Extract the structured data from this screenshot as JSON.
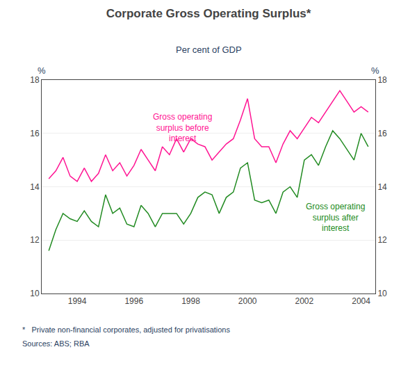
{
  "chart_data": {
    "type": "line",
    "title": "Corporate Gross Operating Surplus*",
    "subtitle": "Per cent of GDP",
    "ylabel": "%",
    "y2label": "%",
    "footnote": "*   Private non-financial corporates, adjusted for privatisations",
    "sources": "Sources: ABS; RBA",
    "grid": true,
    "xlim": [
      1992.75,
      2004.5
    ],
    "xticks": [
      1994,
      1996,
      1998,
      2000,
      2002,
      2004
    ],
    "ylim": [
      10,
      18
    ],
    "yticks": [
      10,
      12,
      14,
      16,
      18
    ],
    "y2lim": [
      10,
      18
    ],
    "y2ticks": [
      10,
      12,
      14,
      16,
      18
    ],
    "x": [
      1993.0,
      1993.25,
      1993.5,
      1993.75,
      1994.0,
      1994.25,
      1994.5,
      1994.75,
      1995.0,
      1995.25,
      1995.5,
      1995.75,
      1996.0,
      1996.25,
      1996.5,
      1996.75,
      1997.0,
      1997.25,
      1997.5,
      1997.75,
      1998.0,
      1998.25,
      1998.5,
      1998.75,
      1999.0,
      1999.25,
      1999.5,
      1999.75,
      2000.0,
      2000.25,
      2000.5,
      2000.75,
      2001.0,
      2001.25,
      2001.5,
      2001.75,
      2002.0,
      2002.25,
      2002.5,
      2002.75,
      2003.0,
      2003.25,
      2003.5,
      2003.75,
      2004.0,
      2004.25
    ],
    "series": [
      {
        "label": "Gross operating\nsurplus before\ninterest",
        "color": "#FF1493",
        "values": [
          14.3,
          14.6,
          15.1,
          14.4,
          14.2,
          14.7,
          14.2,
          14.5,
          15.2,
          14.6,
          14.9,
          14.4,
          14.8,
          15.4,
          15.0,
          14.6,
          15.5,
          15.2,
          15.8,
          15.3,
          15.8,
          15.6,
          15.5,
          15.0,
          15.3,
          15.6,
          15.8,
          16.5,
          17.3,
          15.8,
          15.5,
          15.5,
          14.9,
          15.6,
          16.1,
          15.8,
          16.2,
          16.6,
          16.4,
          16.8,
          17.2,
          17.6,
          17.2,
          16.8,
          17.0,
          16.8
        ]
      },
      {
        "label": "Gross operating\nsurplus after\ninterest",
        "color": "#228B22",
        "values": [
          11.6,
          12.4,
          13.0,
          12.8,
          12.7,
          13.1,
          12.7,
          12.5,
          13.7,
          13.0,
          13.2,
          12.6,
          12.5,
          13.3,
          13.0,
          12.5,
          13.0,
          13.0,
          13.0,
          12.6,
          13.0,
          13.6,
          13.8,
          13.7,
          13.0,
          13.6,
          13.8,
          14.7,
          14.9,
          13.5,
          13.4,
          13.5,
          13.0,
          13.8,
          14.0,
          13.6,
          15.0,
          15.2,
          14.8,
          15.5,
          16.1,
          15.8,
          15.4,
          15.0,
          16.0,
          15.5
        ]
      }
    ]
  }
}
